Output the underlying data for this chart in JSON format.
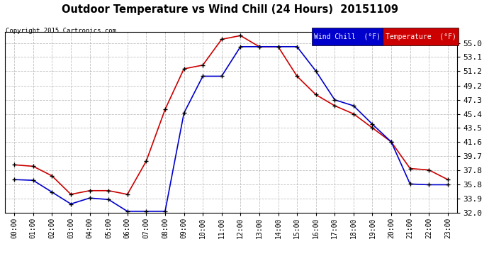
{
  "title": "Outdoor Temperature vs Wind Chill (24 Hours)  20151109",
  "copyright": "Copyright 2015 Cartronics.com",
  "background_color": "#ffffff",
  "plot_bg_color": "#ffffff",
  "grid_color": "#b0b0b0",
  "hours": [
    "00:00",
    "01:00",
    "02:00",
    "03:00",
    "04:00",
    "05:00",
    "06:00",
    "07:00",
    "08:00",
    "09:00",
    "10:00",
    "11:00",
    "12:00",
    "13:00",
    "14:00",
    "15:00",
    "16:00",
    "17:00",
    "18:00",
    "19:00",
    "20:00",
    "21:00",
    "22:00",
    "23:00"
  ],
  "temperature": [
    38.5,
    38.3,
    37.0,
    34.5,
    35.0,
    35.0,
    34.5,
    39.0,
    46.0,
    51.5,
    52.0,
    55.5,
    56.0,
    54.5,
    54.5,
    50.5,
    48.0,
    46.5,
    45.4,
    43.5,
    41.6,
    38.0,
    37.8,
    36.5
  ],
  "wind_chill": [
    36.5,
    36.4,
    34.8,
    33.2,
    34.0,
    33.8,
    32.2,
    32.2,
    32.2,
    45.5,
    50.5,
    50.5,
    54.5,
    54.5,
    54.5,
    54.5,
    51.2,
    47.3,
    46.5,
    44.0,
    41.6,
    35.9,
    35.8,
    35.8
  ],
  "ylim_min": 32.0,
  "ylim_max": 56.5,
  "yticks": [
    32.0,
    33.9,
    35.8,
    37.8,
    39.7,
    41.6,
    43.5,
    45.4,
    47.3,
    49.2,
    51.2,
    53.1,
    55.0
  ],
  "temp_color": "#cc0000",
  "wind_chill_color": "#0000cc",
  "marker_color": "#000000",
  "legend_wind_bg": "#0000cc",
  "legend_temp_bg": "#cc0000",
  "legend_text_color": "#ffffff"
}
